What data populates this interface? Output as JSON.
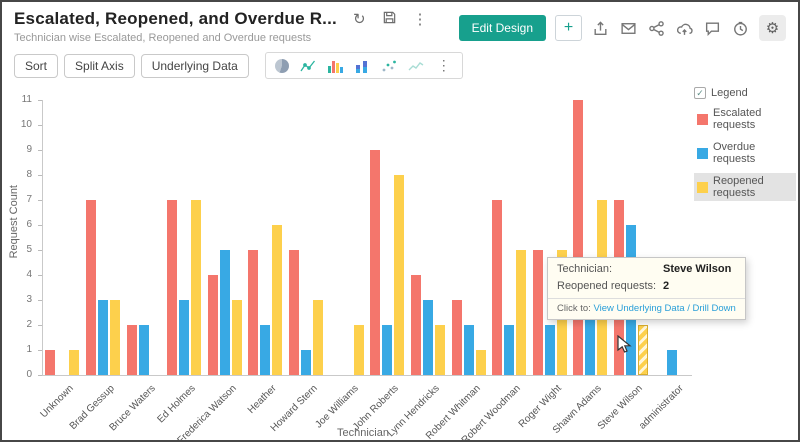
{
  "header": {
    "title": "Escalated, Reopened, and Overdue R...",
    "subtitle": "Technician wise Escalated, Reopened and Overdue requests",
    "edit_design_label": "Edit Design"
  },
  "icons": {
    "refresh": "↻",
    "more_vertical": "⋮",
    "plus": "+",
    "gear": "⚙",
    "check": "✓"
  },
  "toolbar": {
    "sort_label": "Sort",
    "split_axis_label": "Split Axis",
    "underlying_data_label": "Underlying Data"
  },
  "legend": {
    "title": "Legend",
    "checked": true,
    "items": [
      {
        "label": "Escalated requests",
        "color": "#f4766c",
        "highlighted": false
      },
      {
        "label": "Overdue requests",
        "color": "#38a9e4",
        "highlighted": false
      },
      {
        "label": "Reopened requests",
        "color": "#fdd04c",
        "highlighted": true
      }
    ]
  },
  "tooltip": {
    "rows": [
      {
        "label": "Technician:",
        "value": "Steve Wilson"
      },
      {
        "label": "Reopened requests:",
        "value": "2"
      }
    ],
    "click_label": "Click to:",
    "click_action": "View Underlying Data / Drill Down"
  },
  "chart_data": {
    "type": "bar",
    "title": "Escalated, Reopened, and Overdue requests by Technician",
    "xlabel": "Technician",
    "ylabel": "Request Count",
    "ylim": [
      0,
      11
    ],
    "grid": false,
    "legend_position": "right",
    "categories": [
      "Unknown",
      "Brad Gessup",
      "Bruce Waters",
      "Ed Holmes",
      "Frederica Watson",
      "Heather",
      "Howard Stern",
      "Joe Williams",
      "John Roberts",
      "Lynn Hendricks",
      "Robert Whitman",
      "Robert Woodman",
      "Roger Wight",
      "Shawn Adams",
      "Steve Wilson",
      "administrator"
    ],
    "series": [
      {
        "name": "Escalated requests",
        "color": "#f4766c",
        "values": [
          1,
          7,
          2,
          7,
          4,
          5,
          5,
          0,
          9,
          4,
          3,
          7,
          5,
          11,
          7,
          0
        ]
      },
      {
        "name": "Overdue requests",
        "color": "#38a9e4",
        "values": [
          0,
          3,
          2,
          3,
          5,
          2,
          1,
          0,
          2,
          3,
          2,
          2,
          2,
          3,
          6,
          1
        ]
      },
      {
        "name": "Reopened requests",
        "color": "#fdd04c",
        "values": [
          1,
          3,
          0,
          7,
          3,
          6,
          3,
          2,
          8,
          2,
          1,
          5,
          5,
          7,
          2,
          0
        ]
      }
    ],
    "highlight": {
      "category": "Steve Wilson",
      "series": "Reopened requests"
    }
  }
}
